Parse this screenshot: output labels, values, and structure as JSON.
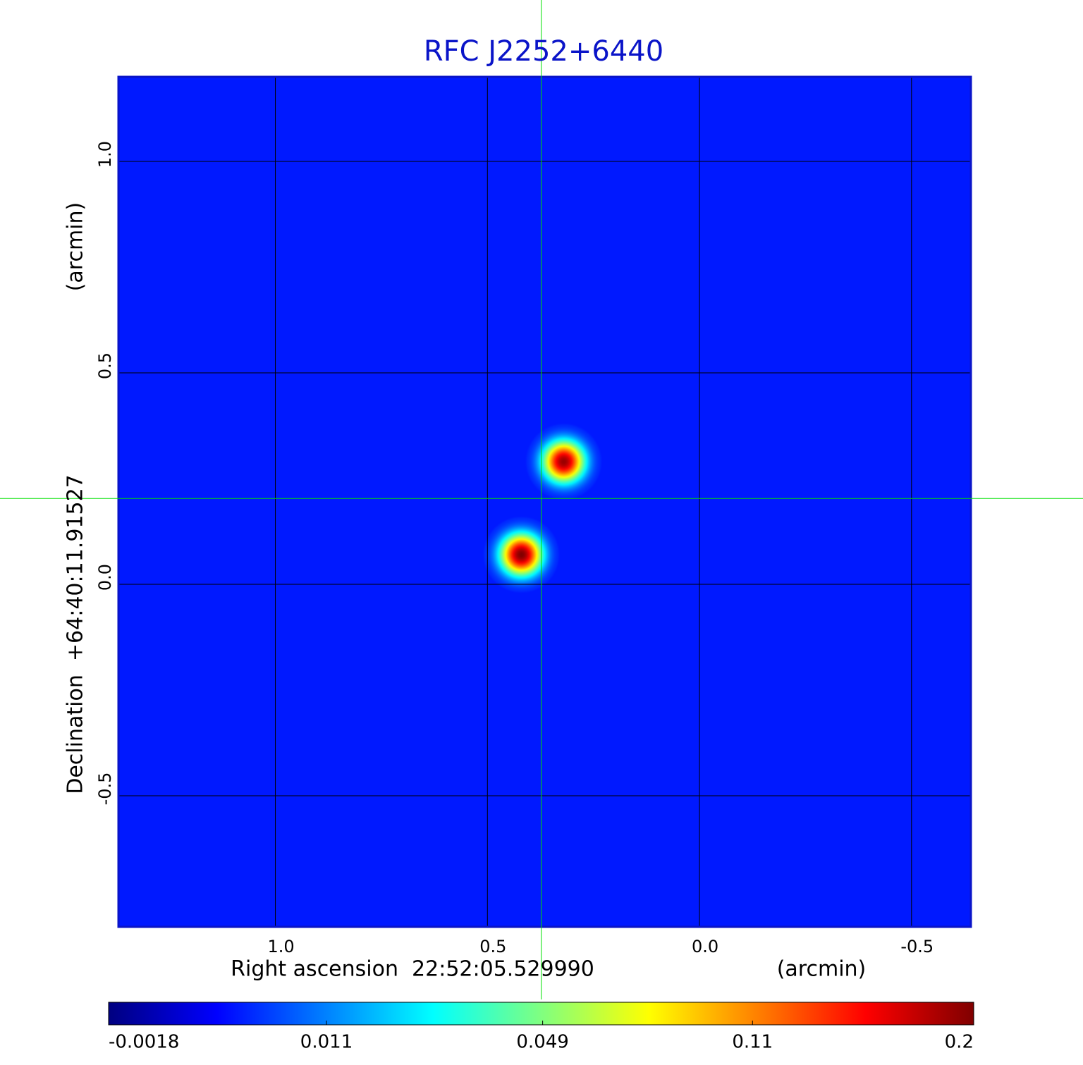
{
  "chart_data": {
    "type": "image",
    "title": "RFC J2252+6440",
    "x_label": "Right ascension  22:52:05.529990",
    "x_unit": "(arcmin)",
    "y_label": "Declination  +64:40:11.91527",
    "y_unit": "(arcmin)",
    "xlim": [
      1.37,
      -0.64
    ],
    "ylim": [
      -0.81,
      1.2
    ],
    "xticks": [
      {
        "value": 1,
        "label": "1.0"
      },
      0.5,
      {
        "value": 0,
        "label": "0.0"
      },
      -0.5
    ],
    "yticks": [
      {
        "value": 1,
        "label": "1.0"
      },
      0.5,
      {
        "value": 0,
        "label": "0.0"
      },
      -0.5
    ],
    "grid": true,
    "grid_color": "#000000",
    "frame_color": "#0a14c8",
    "title_color": "#0a14c8",
    "colormap": "jet",
    "colorbar": {
      "lim": [
        -0.0018,
        0.2
      ],
      "ticks": [
        -0.0018,
        0.011,
        0.049,
        0.11,
        0.2
      ],
      "scale": "sqrt"
    },
    "background_level": 0.0027,
    "sources": [
      {
        "x": 0.32,
        "y": 0.29,
        "peak": 0.19
      },
      {
        "x": 0.42,
        "y": 0.07,
        "peak": 0.2
      }
    ],
    "crosshair": {
      "x": 0.373,
      "y": 0.203,
      "color": "#00e000"
    }
  }
}
